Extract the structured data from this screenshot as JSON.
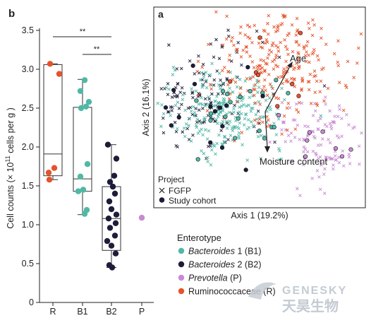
{
  "panel_b": {
    "label": "b",
    "ylabel": "Cell counts (× 10",
    "ylabel_sup": "11",
    "ylabel_tail": " cells per g )",
    "significance": [
      "**",
      "**"
    ]
  },
  "panel_a": {
    "label": "a",
    "xlabel": "Axis 1 (19.2%)",
    "ylabel": "Axis 2 (16.1%)",
    "arrow_age": "Age",
    "arrow_moisture": "Moisture content",
    "legend_title": "Project",
    "legend_fgfp": "FGFP",
    "legend_study": "Study cohort"
  },
  "enterotype_legend": {
    "title": "Enterotype",
    "items": [
      {
        "italic": "Bacteroides",
        "rest": " 1 (B1)",
        "color": "#4fb8a6"
      },
      {
        "italic": "Bacteroides",
        "rest": " 2 (B2)",
        "color": "#1d1d3a"
      },
      {
        "italic": "Prevotella",
        "rest": " (P)",
        "color": "#c88bd3"
      },
      {
        "italic": "",
        "rest": "Ruminococcaceae (R)",
        "color": "#e5532b"
      }
    ]
  },
  "watermark": {
    "line1": "GENESKY",
    "line2": "天昊生物"
  },
  "chart_data": [
    {
      "type": "box",
      "title": "",
      "ylabel": "Cell counts (× 10^11 cells per g)",
      "ylim": [
        0,
        3.7
      ],
      "yticks": [
        "0",
        "0.5",
        "1.0",
        "1.5",
        "2.0",
        "2.5",
        "3.0",
        "3.5"
      ],
      "categories": [
        "R",
        "B1",
        "B2",
        "P"
      ],
      "colors": {
        "R": "#e5532b",
        "B1": "#4fb8a6",
        "B2": "#1d1d3a",
        "P": "#c88bd3"
      },
      "boxes": [
        {
          "category": "R",
          "min": 1.58,
          "q1": 1.63,
          "median": 1.91,
          "q3": 3.06,
          "max": 3.07
        },
        {
          "category": "B1",
          "min": 1.13,
          "q1": 1.43,
          "median": 1.59,
          "q3": 2.51,
          "max": 2.87
        },
        {
          "category": "B2",
          "min": 0.45,
          "q1": 0.67,
          "median": 1.08,
          "q3": 1.49,
          "max": 2.03
        }
      ],
      "points": {
        "R": [
          3.07,
          2.94,
          1.73,
          1.67,
          1.58
        ],
        "B1": [
          2.86,
          2.72,
          2.58,
          2.52,
          2.5,
          1.78,
          1.62,
          1.45,
          1.43,
          1.19,
          1.14
        ],
        "B2": [
          2.03,
          1.85,
          1.63,
          1.55,
          1.49,
          1.4,
          1.3,
          1.2,
          1.13,
          1.08,
          1.02,
          0.96,
          0.86,
          0.79,
          0.73,
          0.63,
          0.48,
          0.45
        ],
        "P": [
          1.09
        ]
      },
      "significance": [
        {
          "pair": [
            "R",
            "B2"
          ],
          "label": "**"
        },
        {
          "pair": [
            "B1",
            "B2"
          ],
          "label": "**"
        }
      ]
    },
    {
      "type": "scatter",
      "title": "",
      "xlabel": "Axis 1 (19.2%)",
      "ylabel": "Axis 2 (16.1%)",
      "xlim": [
        -1,
        1
      ],
      "ylim": [
        -1,
        1
      ],
      "series": [
        {
          "name": "FGFP",
          "marker": "x",
          "groups": {
            "B1": {
              "center": [
                -0.3,
                -0.05
              ],
              "spread": [
                0.28,
                0.2
              ],
              "n": 230
            },
            "B2": {
              "center": [
                -0.55,
                0.1
              ],
              "spread": [
                0.3,
                0.3
              ],
              "n": 140
            },
            "R": {
              "center": [
                0.15,
                0.45
              ],
              "spread": [
                0.3,
                0.3
              ],
              "n": 260
            },
            "P": {
              "center": [
                0.6,
                -0.35
              ],
              "spread": [
                0.22,
                0.25
              ],
              "n": 120
            }
          }
        },
        {
          "name": "Study cohort",
          "marker": "o",
          "n": 55
        }
      ],
      "arrows": [
        {
          "label": "Age",
          "from": [
            0.2,
            0.05
          ],
          "to": [
            0.5,
            0.55
          ]
        },
        {
          "label": "Moisture content",
          "from": [
            0.2,
            0.05
          ],
          "to": [
            0.2,
            -0.35
          ]
        }
      ]
    }
  ]
}
